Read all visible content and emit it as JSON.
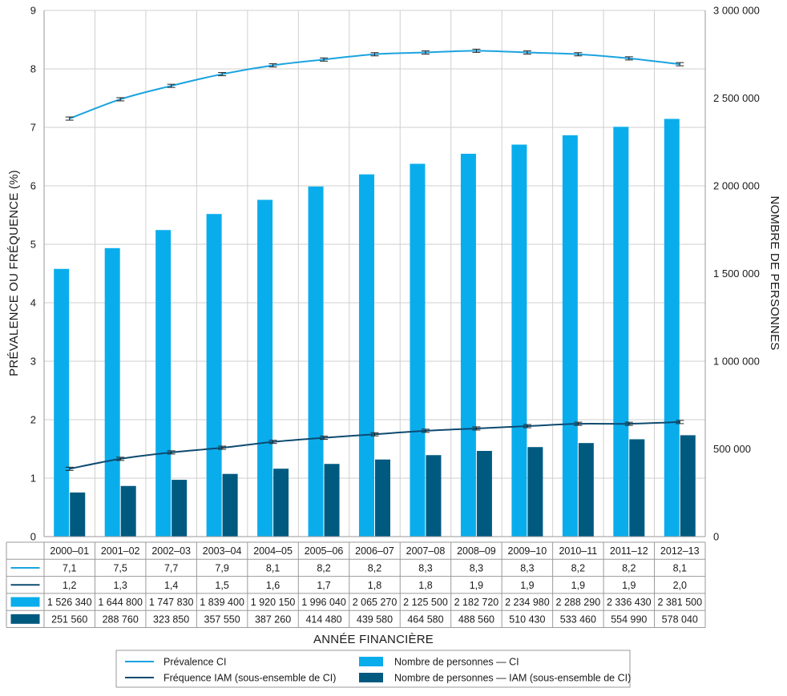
{
  "chart_data": {
    "type": "bar",
    "categories": [
      "2000–01",
      "2001–02",
      "2002–03",
      "2003–04",
      "2004–05",
      "2005–06",
      "2006–07",
      "2007–08",
      "2008–09",
      "2009–10",
      "2010–11",
      "2011–12",
      "2012–13"
    ],
    "series": [
      {
        "name": "Prévalence CI",
        "kind": "line",
        "axis": "left",
        "color": "#1aa3e0",
        "values": [
          7.15,
          7.48,
          7.71,
          7.91,
          8.06,
          8.16,
          8.25,
          8.28,
          8.31,
          8.28,
          8.25,
          8.18,
          8.08
        ],
        "labels": [
          "7,1",
          "7,5",
          "7,7",
          "7,9",
          "8,1",
          "8,2",
          "8,2",
          "8,3",
          "8,3",
          "8,3",
          "8,2",
          "8,2",
          "8,1"
        ]
      },
      {
        "name": "Fréquence IAM (sous-ensemble de CI)",
        "kind": "line",
        "axis": "left",
        "color": "#0d4a70",
        "values": [
          1.16,
          1.33,
          1.44,
          1.52,
          1.62,
          1.69,
          1.75,
          1.81,
          1.85,
          1.89,
          1.93,
          1.93,
          1.96
        ],
        "labels": [
          "1,2",
          "1,3",
          "1,4",
          "1,5",
          "1,6",
          "1,7",
          "1,8",
          "1,8",
          "1,9",
          "1,9",
          "1,9",
          "1,9",
          "2,0"
        ]
      },
      {
        "name": "Nombre de personnes — CI",
        "kind": "bar",
        "axis": "right",
        "color": "#0aadec",
        "values": [
          1526340,
          1644800,
          1747830,
          1839400,
          1920150,
          1996040,
          2065270,
          2125500,
          2182720,
          2234980,
          2288290,
          2336430,
          2381500
        ],
        "labels": [
          "1 526 340",
          "1 644 800",
          "1 747 830",
          "1 839 400",
          "1 920 150",
          "1 996 040",
          "2 065 270",
          "2 125 500",
          "2 182 720",
          "2 234 980",
          "2 288 290",
          "2 336 430",
          "2 381 500"
        ]
      },
      {
        "name": "Nombre de personnes — IAM (sous-ensemble de CI)",
        "kind": "bar",
        "axis": "right",
        "color": "#005a80",
        "values": [
          251560,
          288760,
          323850,
          357550,
          387260,
          414480,
          439580,
          464580,
          488560,
          510430,
          533460,
          554990,
          578040
        ],
        "labels": [
          "251 560",
          "288 760",
          "323 850",
          "357 550",
          "387 260",
          "414 480",
          "439 580",
          "464 580",
          "488 560",
          "510 430",
          "533 460",
          "554 990",
          "578 040"
        ]
      }
    ],
    "y_left": {
      "label": "PRÉVALENCE OU FRÉQUENCE (%)",
      "range": [
        0,
        9
      ],
      "ticks": [
        "0",
        "1",
        "2",
        "3",
        "4",
        "5",
        "6",
        "7",
        "8",
        "9"
      ]
    },
    "y_right": {
      "label": "NOMBRE DE PERSONNES",
      "range": [
        0,
        3000000
      ],
      "ticks": [
        "0",
        "500 000",
        "1 000 000",
        "1 500 000",
        "2 000 000",
        "2 500 000",
        "3 000 000"
      ]
    },
    "xlabel": "ANNÉE FINANCIÈRE",
    "grid": true,
    "legend": "bottom",
    "data_table": true,
    "error_bars": true
  }
}
